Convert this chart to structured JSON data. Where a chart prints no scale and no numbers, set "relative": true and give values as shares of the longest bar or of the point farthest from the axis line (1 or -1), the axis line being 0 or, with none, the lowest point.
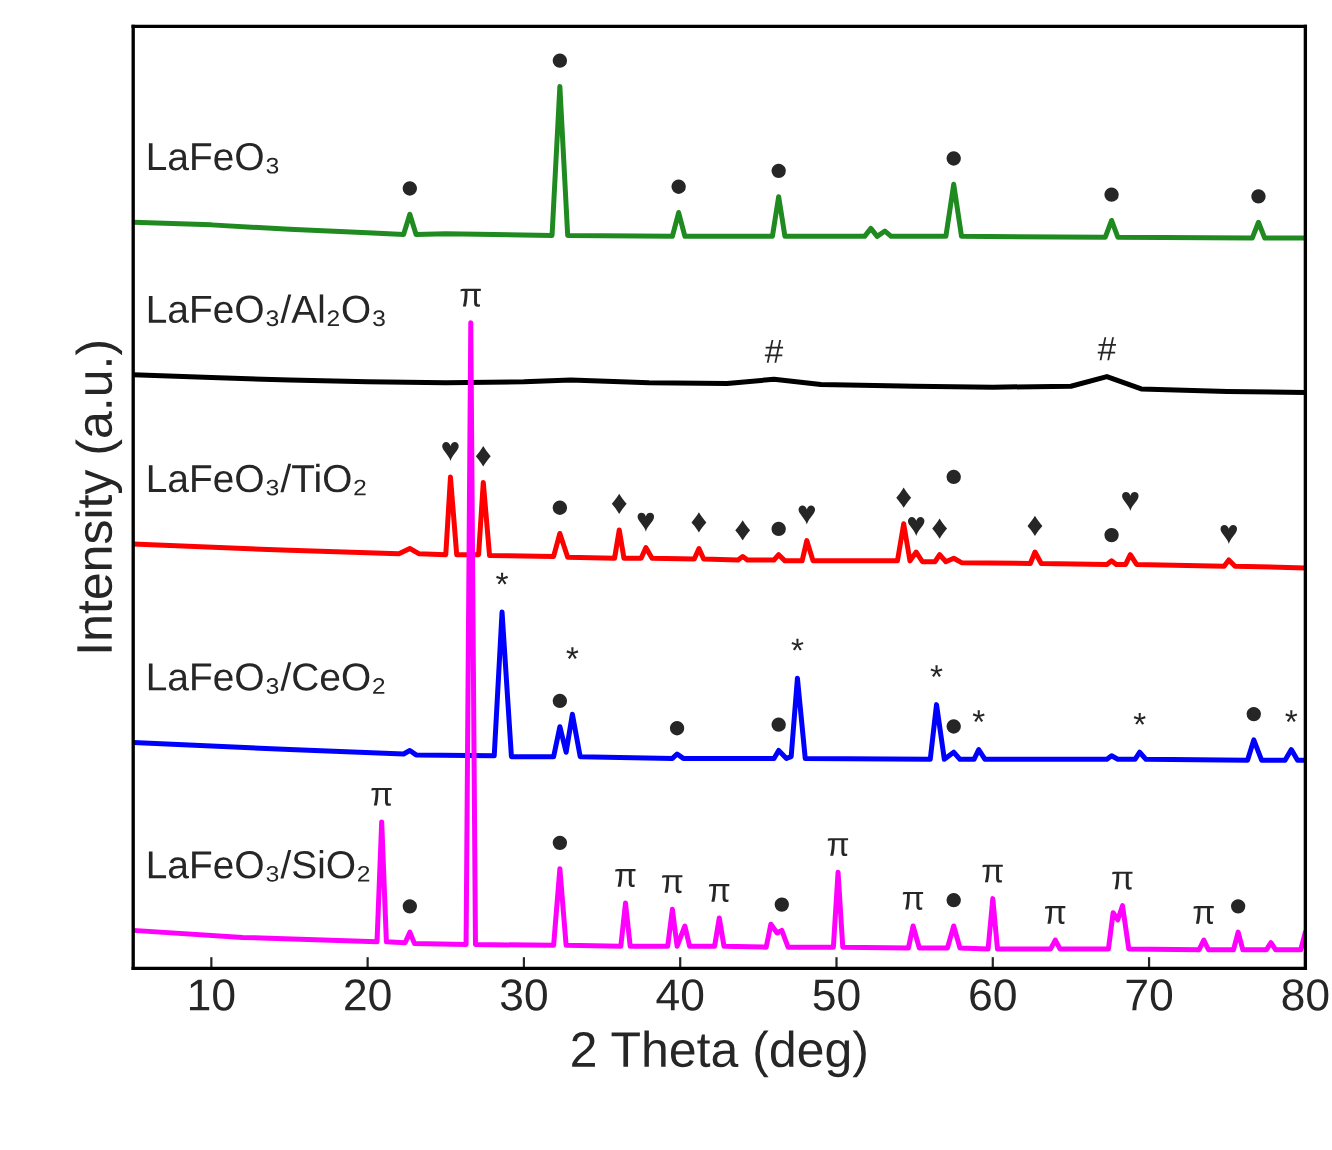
{
  "chart_data": {
    "type": "line",
    "relative": true,
    "xlabel": "2 Theta (deg)",
    "ylabel": "Intensity (a.u.)",
    "xlim": [
      5,
      80
    ],
    "xticks": [
      10,
      20,
      30,
      40,
      50,
      60,
      70,
      80
    ],
    "grid": false,
    "legend": false,
    "marker": "none",
    "line_style": "solid",
    "series": [
      {
        "name": "LaFeO₃",
        "color": "#1f8a1f",
        "x": [
          5,
          10,
          15,
          20,
          22.3,
          22.7,
          23.1,
          25,
          31.8,
          32.3,
          32.8,
          39.5,
          39.9,
          40.3,
          45.9,
          46.3,
          46.7,
          51.8,
          52.2,
          52.6,
          53.1,
          53.5,
          57.0,
          57.5,
          58.0,
          67.2,
          67.6,
          68.0,
          76.6,
          77.0,
          77.4,
          80
        ],
        "values": [
          0.846,
          0.843,
          0.838,
          0.834,
          0.832,
          0.855,
          0.832,
          0.833,
          0.831,
          1.0,
          0.831,
          0.83,
          0.857,
          0.83,
          0.83,
          0.875,
          0.83,
          0.83,
          0.839,
          0.83,
          0.836,
          0.83,
          0.83,
          0.889,
          0.83,
          0.829,
          0.848,
          0.829,
          0.828,
          0.846,
          0.828,
          0.828
        ]
      },
      {
        "name": "LaFeO₃/Al₂O₃",
        "color": "#000000",
        "x": [
          5,
          10,
          15,
          20,
          25,
          30,
          33,
          38,
          43,
          46,
          49,
          55,
          60,
          65,
          67.3,
          69.5,
          75,
          80
        ],
        "values": [
          0.673,
          0.67,
          0.667,
          0.665,
          0.664,
          0.665,
          0.667,
          0.664,
          0.663,
          0.668,
          0.662,
          0.66,
          0.659,
          0.66,
          0.671,
          0.657,
          0.654,
          0.653
        ]
      },
      {
        "name": "LaFeO₃/TiO₂",
        "color": "#ff0000",
        "x": [
          5,
          15,
          22,
          22.7,
          23.3,
          25.0,
          25.3,
          25.7,
          27.1,
          27.4,
          27.8,
          31.9,
          32.3,
          32.8,
          35.8,
          36.1,
          36.4,
          37.5,
          37.8,
          38.2,
          40.9,
          41.2,
          41.5,
          43.7,
          44.0,
          44.3,
          46.0,
          46.3,
          46.7,
          47.8,
          48.1,
          48.5,
          53.9,
          54.3,
          54.7,
          55.1,
          55.5,
          56.3,
          56.6,
          57.0,
          57.5,
          58.0,
          62.4,
          62.7,
          63.1,
          67.3,
          67.6,
          67.9,
          68.5,
          68.8,
          69.2,
          74.8,
          75.1,
          75.5,
          80
        ],
        "values": [
          0.481,
          0.474,
          0.47,
          0.476,
          0.47,
          0.469,
          0.557,
          0.469,
          0.469,
          0.551,
          0.468,
          0.467,
          0.493,
          0.466,
          0.465,
          0.497,
          0.465,
          0.465,
          0.477,
          0.465,
          0.464,
          0.476,
          0.464,
          0.463,
          0.467,
          0.463,
          0.463,
          0.469,
          0.462,
          0.462,
          0.485,
          0.462,
          0.462,
          0.504,
          0.462,
          0.472,
          0.461,
          0.461,
          0.469,
          0.461,
          0.465,
          0.46,
          0.459,
          0.472,
          0.459,
          0.458,
          0.462,
          0.458,
          0.458,
          0.469,
          0.458,
          0.456,
          0.463,
          0.456,
          0.454
        ]
      },
      {
        "name": "LaFeO₃/CeO₂",
        "color": "#0000ff",
        "x": [
          5,
          15,
          22.3,
          22.7,
          23.1,
          28.1,
          28.6,
          29.2,
          31.9,
          32.3,
          32.7,
          33.1,
          33.6,
          39.5,
          39.8,
          40.2,
          46.0,
          46.3,
          46.8,
          47.1,
          47.5,
          48.0,
          56.0,
          56.4,
          56.9,
          57.5,
          57.9,
          58.8,
          59.1,
          59.5,
          67.3,
          67.6,
          68,
          69.1,
          69.4,
          69.8,
          76.3,
          76.7,
          77.2,
          78.7,
          79.1,
          79.5,
          80
        ],
        "values": [
          0.256,
          0.248,
          0.243,
          0.247,
          0.242,
          0.241,
          0.404,
          0.24,
          0.24,
          0.274,
          0.245,
          0.288,
          0.24,
          0.238,
          0.243,
          0.238,
          0.238,
          0.247,
          0.238,
          0.24,
          0.329,
          0.238,
          0.237,
          0.299,
          0.237,
          0.245,
          0.237,
          0.237,
          0.248,
          0.237,
          0.237,
          0.241,
          0.237,
          0.237,
          0.245,
          0.237,
          0.236,
          0.259,
          0.236,
          0.236,
          0.248,
          0.236,
          0.236
        ]
      },
      {
        "name": "LaFeO₃/SiO₂",
        "color": "#ff00ff",
        "x": [
          5,
          12,
          20.6,
          20.9,
          21.2,
          22.4,
          22.7,
          23.0,
          26.3,
          26.6,
          26.9,
          31.9,
          32.3,
          32.7,
          36.2,
          36.5,
          36.8,
          39.2,
          39.5,
          39.8,
          40.3,
          40.6,
          42.2,
          42.5,
          42.8,
          45.5,
          45.8,
          46.2,
          46.5,
          46.9,
          49.8,
          50.1,
          50.4,
          54.6,
          54.9,
          55.3,
          57.1,
          57.5,
          57.9,
          59.7,
          60.0,
          60.3,
          63.7,
          64.0,
          64.3,
          67.4,
          67.7,
          68.0,
          68.3,
          68.7,
          73.2,
          73.5,
          73.8,
          75.4,
          75.7,
          76.0,
          77.5,
          77.8,
          78.1,
          79.7,
          80
        ],
        "values": [
          0.043,
          0.035,
          0.03,
          0.166,
          0.03,
          0.029,
          0.041,
          0.028,
          0.027,
          0.732,
          0.027,
          0.026,
          0.113,
          0.026,
          0.025,
          0.074,
          0.025,
          0.025,
          0.067,
          0.025,
          0.048,
          0.025,
          0.025,
          0.057,
          0.025,
          0.024,
          0.05,
          0.04,
          0.043,
          0.024,
          0.024,
          0.109,
          0.024,
          0.023,
          0.048,
          0.023,
          0.023,
          0.048,
          0.023,
          0.022,
          0.079,
          0.022,
          0.022,
          0.032,
          0.022,
          0.022,
          0.063,
          0.055,
          0.071,
          0.022,
          0.021,
          0.032,
          0.021,
          0.021,
          0.041,
          0.021,
          0.021,
          0.029,
          0.021,
          0.021,
          0.041
        ]
      }
    ],
    "annotations": [
      {
        "text": "●",
        "x": 22.7,
        "y": 0.855
      },
      {
        "text": "●",
        "x": 32.3,
        "y": 1.0
      },
      {
        "text": "●",
        "x": 39.9,
        "y": 0.857
      },
      {
        "text": "●",
        "x": 46.3,
        "y": 0.875
      },
      {
        "text": "●",
        "x": 57.5,
        "y": 0.889
      },
      {
        "text": "●",
        "x": 67.6,
        "y": 0.848
      },
      {
        "text": "●",
        "x": 77.0,
        "y": 0.846
      },
      {
        "text": "#",
        "x": 46,
        "y": 0.668
      },
      {
        "text": "#",
        "x": 67.3,
        "y": 0.671
      },
      {
        "text": "π",
        "x": 26.6,
        "y": 0.732
      },
      {
        "text": "♥",
        "x": 25.3,
        "y": 0.557
      },
      {
        "text": "♦",
        "x": 27.4,
        "y": 0.551
      },
      {
        "text": "●",
        "x": 32.3,
        "y": 0.493
      },
      {
        "text": "♦",
        "x": 36.1,
        "y": 0.497
      },
      {
        "text": "♥",
        "x": 37.8,
        "y": 0.477
      },
      {
        "text": "♦",
        "x": 41.2,
        "y": 0.476
      },
      {
        "text": "♦",
        "x": 44.0,
        "y": 0.467
      },
      {
        "text": "●",
        "x": 46.3,
        "y": 0.469
      },
      {
        "text": "♥",
        "x": 48.1,
        "y": 0.485
      },
      {
        "text": "♦",
        "x": 54.3,
        "y": 0.504
      },
      {
        "text": "♥",
        "x": 55.1,
        "y": 0.472
      },
      {
        "text": "♦",
        "x": 56.6,
        "y": 0.469
      },
      {
        "text": "●",
        "x": 57.5,
        "y": 0.465
      },
      {
        "text": "♦",
        "x": 62.7,
        "y": 0.472
      },
      {
        "text": "●",
        "x": 67.6,
        "y": 0.462
      },
      {
        "text": "♥",
        "x": 68.8,
        "y": 0.469
      },
      {
        "text": "♥",
        "x": 75.1,
        "y": 0.463
      },
      {
        "text": "*",
        "x": 28.6,
        "y": 0.404
      },
      {
        "text": "●",
        "x": 32.3,
        "y": 0.274
      },
      {
        "text": "*",
        "x": 33.1,
        "y": 0.288
      },
      {
        "text": "●",
        "x": 39.8,
        "y": 0.243
      },
      {
        "text": "●",
        "x": 46.3,
        "y": 0.247
      },
      {
        "text": "*",
        "x": 47.5,
        "y": 0.329
      },
      {
        "text": "*",
        "x": 56.4,
        "y": 0.299
      },
      {
        "text": "●",
        "x": 57.5,
        "y": 0.245
      },
      {
        "text": "*",
        "x": 59.1,
        "y": 0.248
      },
      {
        "text": "*",
        "x": 69.4,
        "y": 0.245
      },
      {
        "text": "●",
        "x": 76.7,
        "y": 0.259
      },
      {
        "text": "*",
        "x": 79.1,
        "y": 0.248
      },
      {
        "text": "π",
        "x": 20.9,
        "y": 0.166
      },
      {
        "text": "●",
        "x": 22.7,
        "y": 0.041
      },
      {
        "text": "●",
        "x": 32.3,
        "y": 0.113
      },
      {
        "text": "π",
        "x": 36.5,
        "y": 0.074
      },
      {
        "text": "π",
        "x": 39.5,
        "y": 0.067
      },
      {
        "text": "π",
        "x": 42.5,
        "y": 0.057
      },
      {
        "text": "●",
        "x": 46.5,
        "y": 0.043
      },
      {
        "text": "π",
        "x": 50.1,
        "y": 0.109
      },
      {
        "text": "π",
        "x": 54.9,
        "y": 0.048
      },
      {
        "text": "●",
        "x": 57.5,
        "y": 0.048
      },
      {
        "text": "π",
        "x": 60.0,
        "y": 0.079
      },
      {
        "text": "π",
        "x": 64.0,
        "y": 0.032
      },
      {
        "text": "π",
        "x": 68.3,
        "y": 0.071
      },
      {
        "text": "π",
        "x": 73.5,
        "y": 0.032
      },
      {
        "text": "●",
        "x": 75.7,
        "y": 0.041
      }
    ]
  }
}
